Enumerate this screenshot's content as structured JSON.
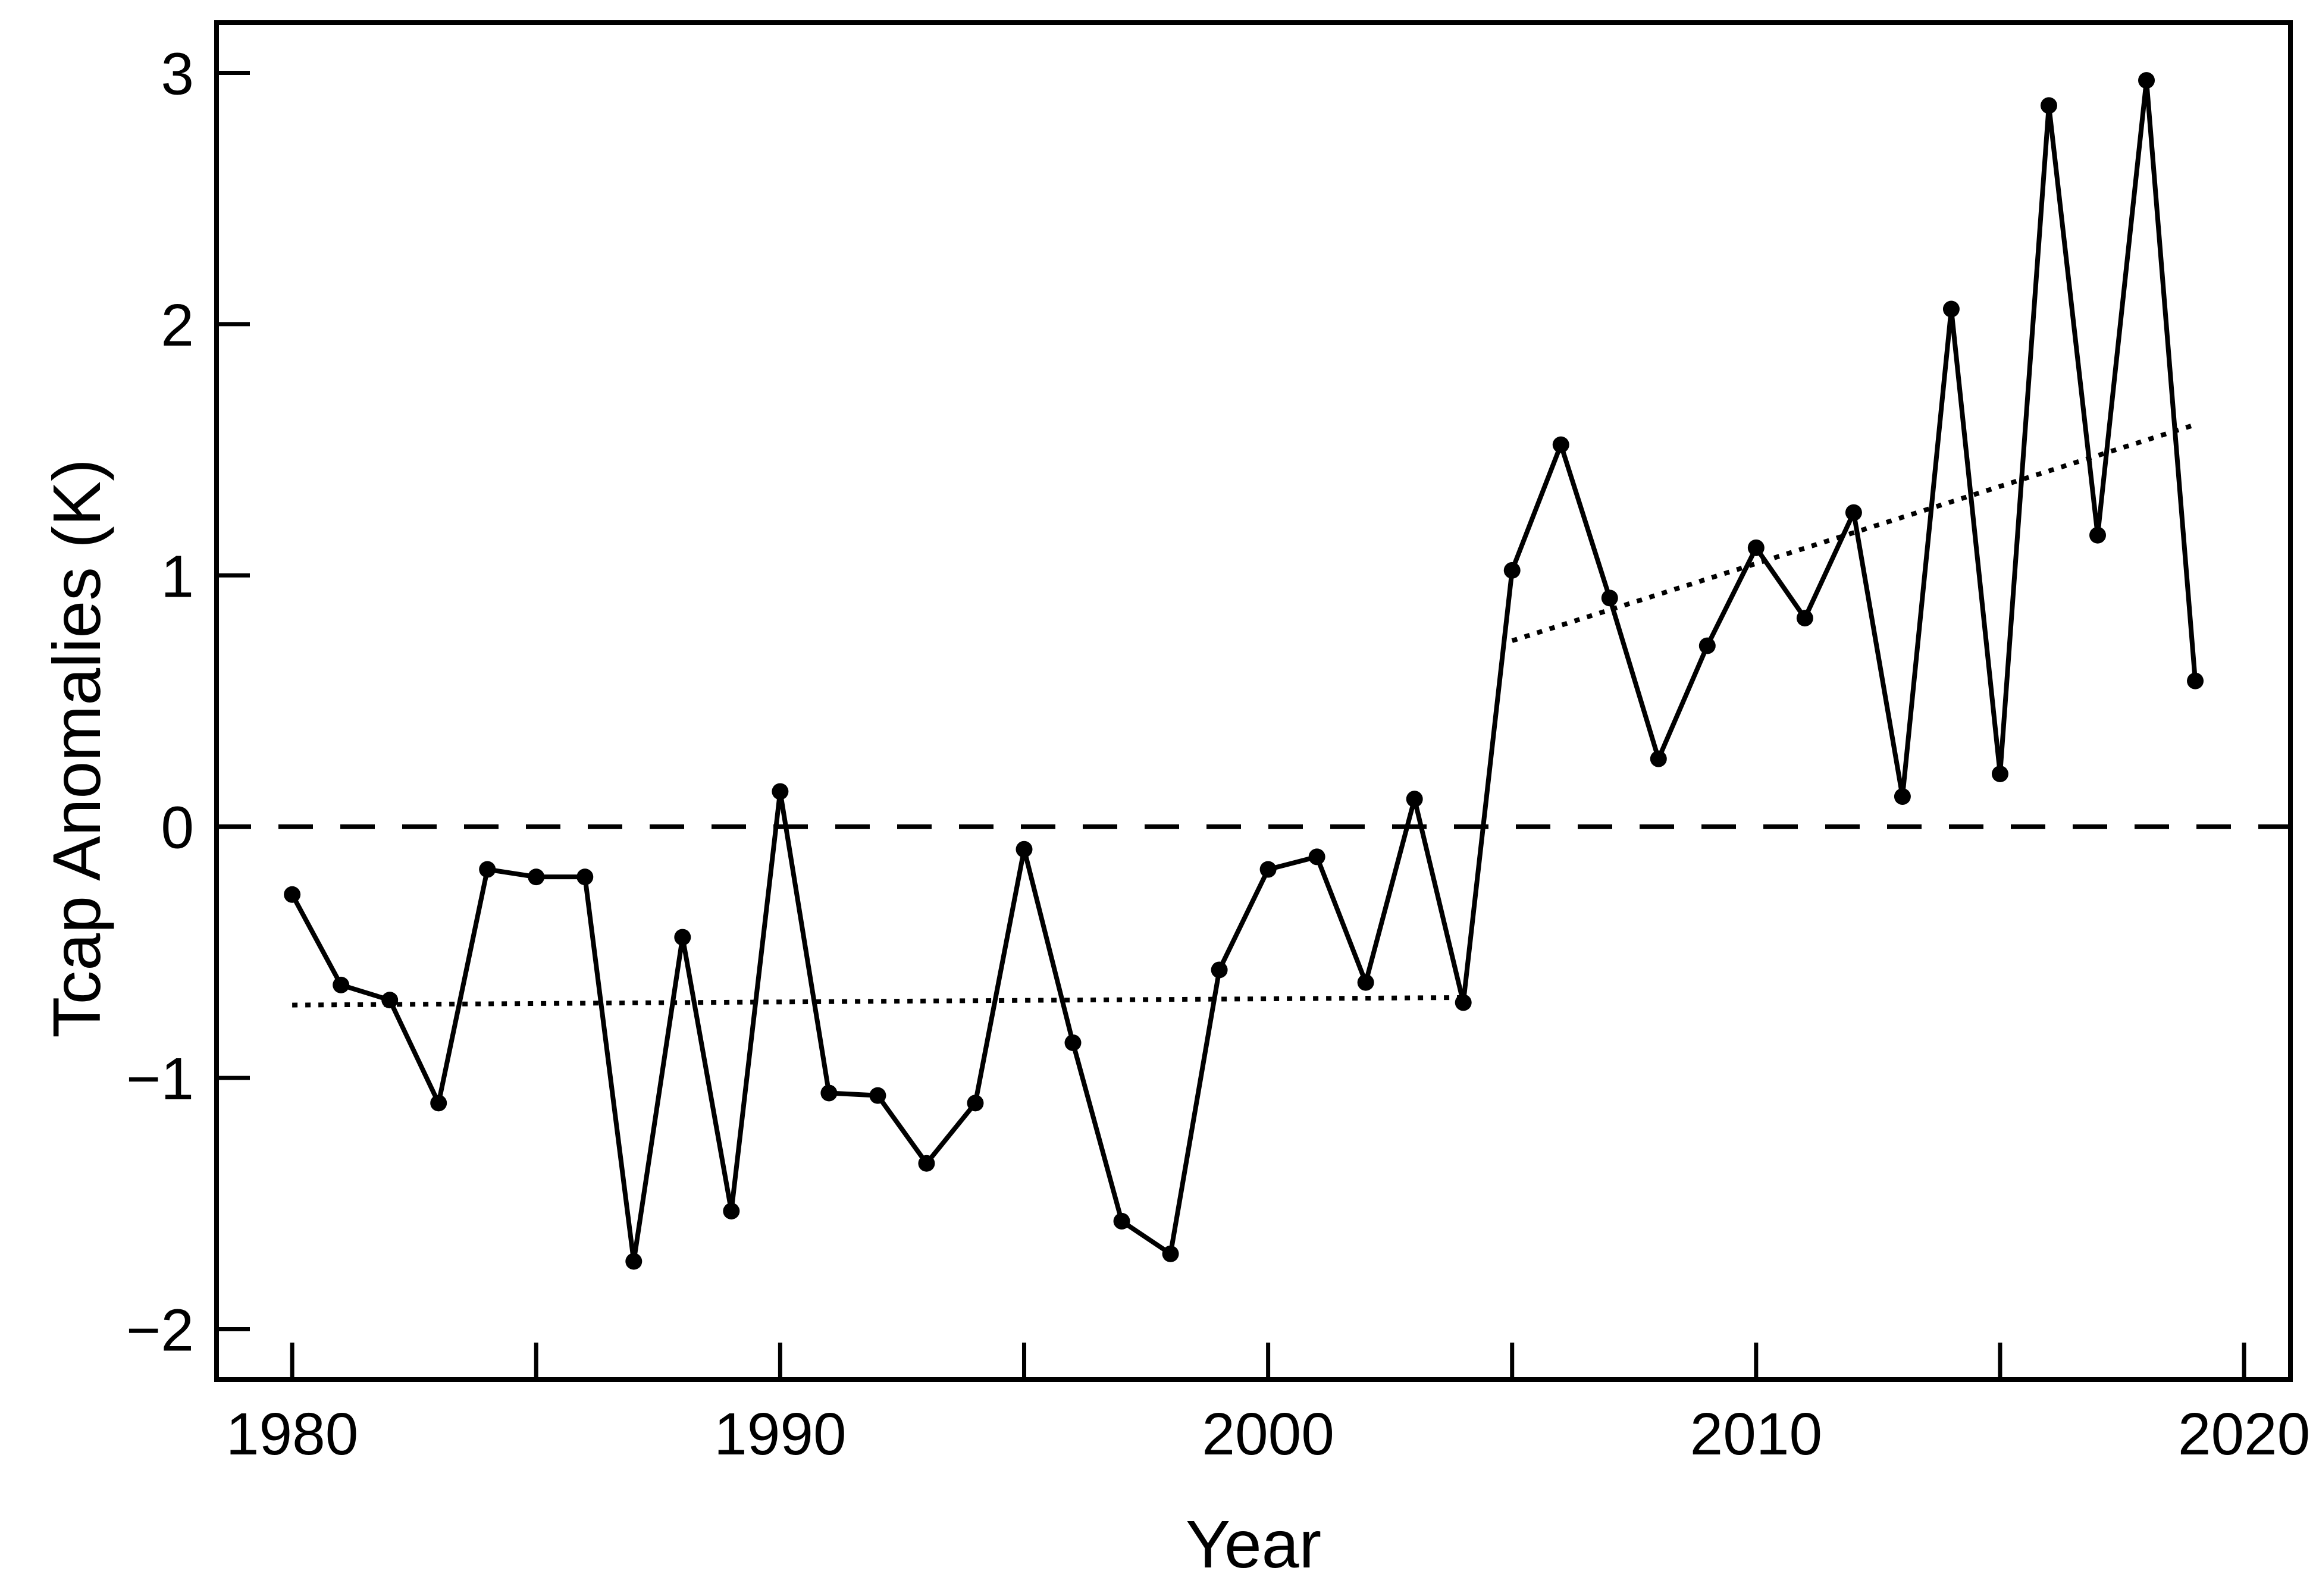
{
  "chart_data": {
    "type": "line",
    "title": "",
    "xlabel": "Year",
    "ylabel": "Tcap Anomalies (K)",
    "x": [
      1980,
      1981,
      1982,
      1983,
      1984,
      1985,
      1986,
      1987,
      1988,
      1989,
      1990,
      1991,
      1992,
      1993,
      1994,
      1995,
      1996,
      1997,
      1998,
      1999,
      2000,
      2001,
      2002,
      2003,
      2004,
      2005,
      2006,
      2007,
      2008,
      2009,
      2010,
      2011,
      2012,
      2013,
      2014,
      2015,
      2016,
      2017,
      2018,
      2019
    ],
    "values": [
      -0.27,
      -0.63,
      -0.69,
      -1.1,
      -0.17,
      -0.2,
      -0.2,
      -1.73,
      -0.44,
      -1.53,
      0.14,
      -1.06,
      -1.07,
      -1.34,
      -1.1,
      -0.09,
      -0.86,
      -1.57,
      -1.7,
      -0.57,
      -0.17,
      -0.12,
      -0.62,
      0.11,
      -0.7,
      1.02,
      1.52,
      0.91,
      0.27,
      0.72,
      1.11,
      0.83,
      1.25,
      0.12,
      2.06,
      0.21,
      2.87,
      1.16,
      2.97,
      0.58
    ],
    "marker": "filled-circle",
    "xlim": [
      1978.45,
      2020.95
    ],
    "ylim": [
      -2.2,
      3.2
    ],
    "x_axis": {
      "minor_tick_years": [
        1980,
        1985,
        1990,
        1995,
        2000,
        2005,
        2010,
        2015,
        2020
      ],
      "labeled_tick_years": [
        1980,
        1990,
        2000,
        2010,
        2020
      ],
      "tick_labels": [
        "1980",
        "1990",
        "2000",
        "2010",
        "2020"
      ]
    },
    "y_axis": {
      "tick_values": [
        -2,
        -1,
        0,
        1,
        2,
        3
      ],
      "tick_labels": [
        "−2",
        "−1",
        "0",
        "1",
        "2",
        "3"
      ]
    },
    "reference_lines": [
      {
        "style": "dashed",
        "y": 0
      }
    ],
    "trend_segments": [
      {
        "style": "dotted",
        "x1": 1980,
        "y1": -0.71,
        "x2": 2004,
        "y2": -0.68
      },
      {
        "style": "dotted",
        "x1": 2005,
        "y1": 0.74,
        "x2": 2019,
        "y2": 1.6
      }
    ],
    "grid": false,
    "legend": "none",
    "colors": {
      "foreground": "#000000",
      "background": "#ffffff"
    }
  }
}
